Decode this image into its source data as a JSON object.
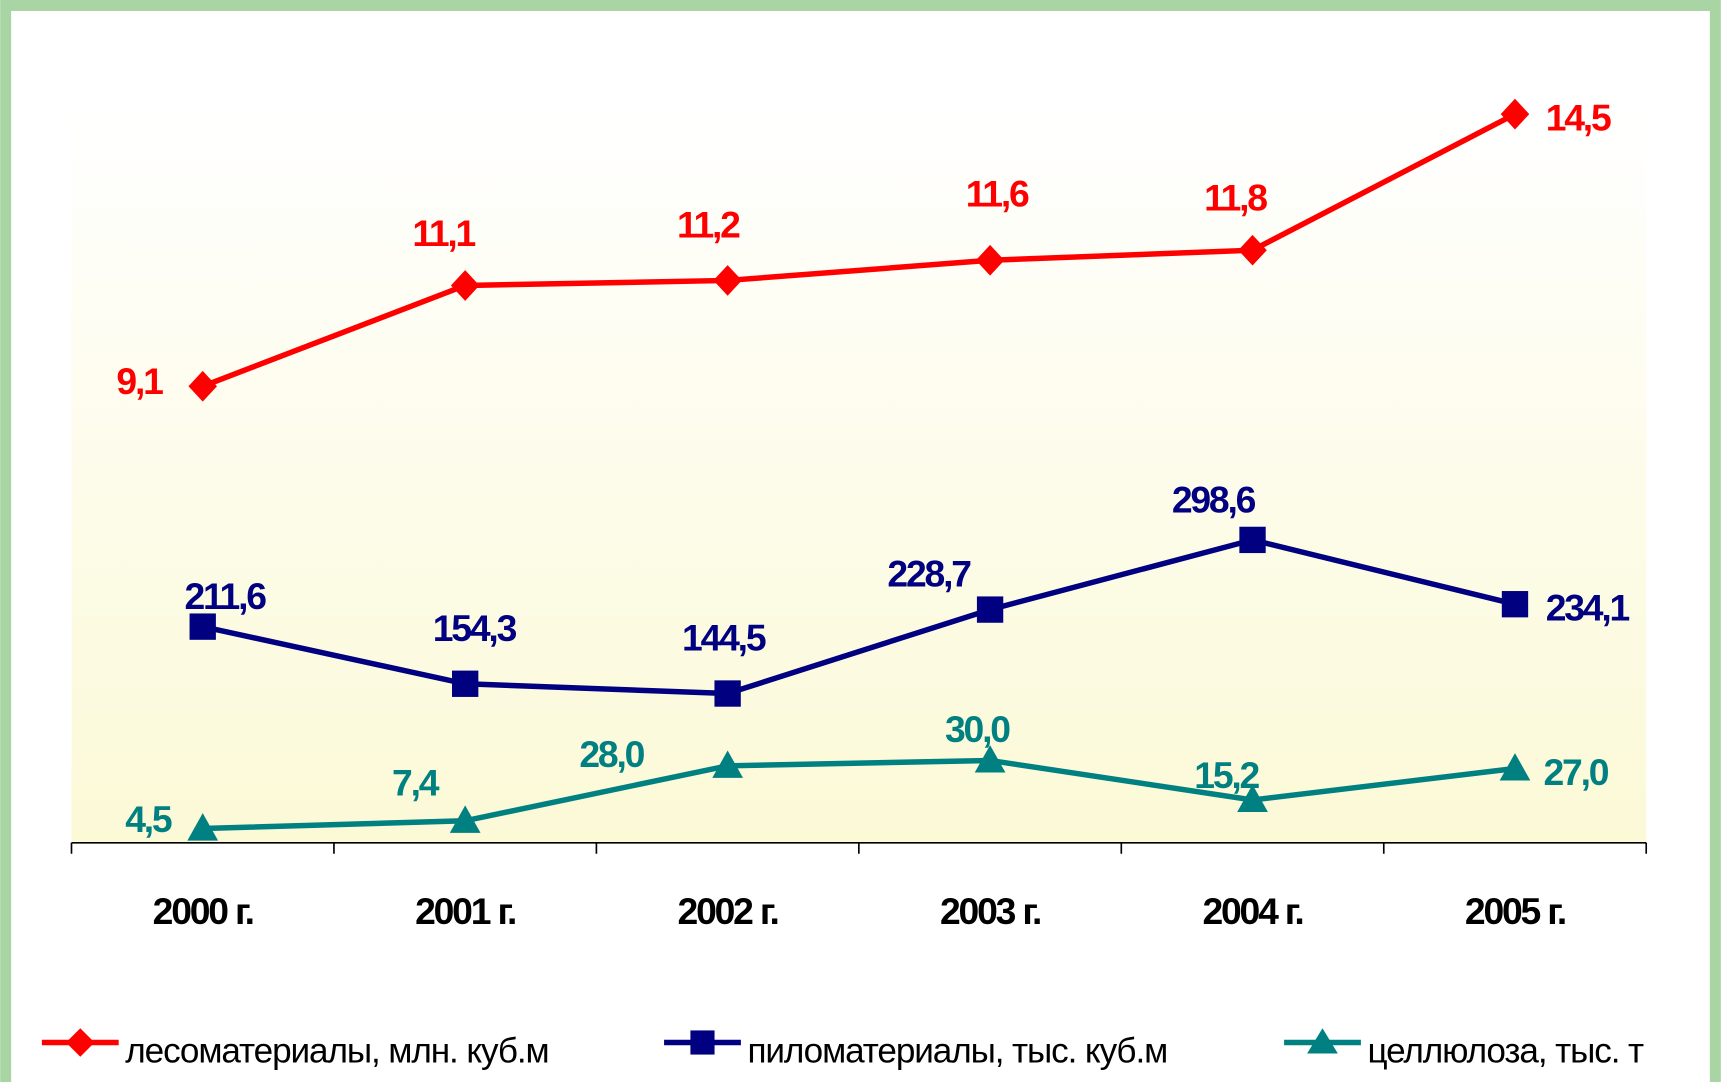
{
  "chart_data": {
    "type": "line",
    "categories": [
      "2000 г.",
      "2001 г.",
      "2002 г.",
      "2003 г.",
      "2004 г.",
      "2005 г."
    ],
    "series": [
      {
        "name": "лесоматериалы, млн. куб.м",
        "color": "#ff0000",
        "marker": "diamond",
        "values": [
          9.1,
          11.1,
          11.2,
          11.6,
          11.8,
          14.5
        ],
        "value_labels": [
          "9,1",
          "11,1",
          "11,2",
          "11,6",
          "11,8",
          "14,5"
        ]
      },
      {
        "name": "пиломатериалы, тыс. куб.м",
        "color": "#000080",
        "marker": "square",
        "values": [
          211.6,
          154.3,
          144.5,
          228.7,
          298.6,
          234.1
        ],
        "value_labels": [
          "211,6",
          "154,3",
          "144,5",
          "228,7",
          "298,6",
          "234,1"
        ]
      },
      {
        "name": "целлюлоза, тыс. т",
        "color": "#008080",
        "marker": "triangle",
        "values": [
          4.5,
          7.4,
          28.0,
          30.0,
          15.2,
          27.0
        ],
        "value_labels": [
          "4,5",
          "7,4",
          "28,0",
          "30,0",
          "15,2",
          "27,0"
        ]
      }
    ],
    "legend": "bottom"
  }
}
